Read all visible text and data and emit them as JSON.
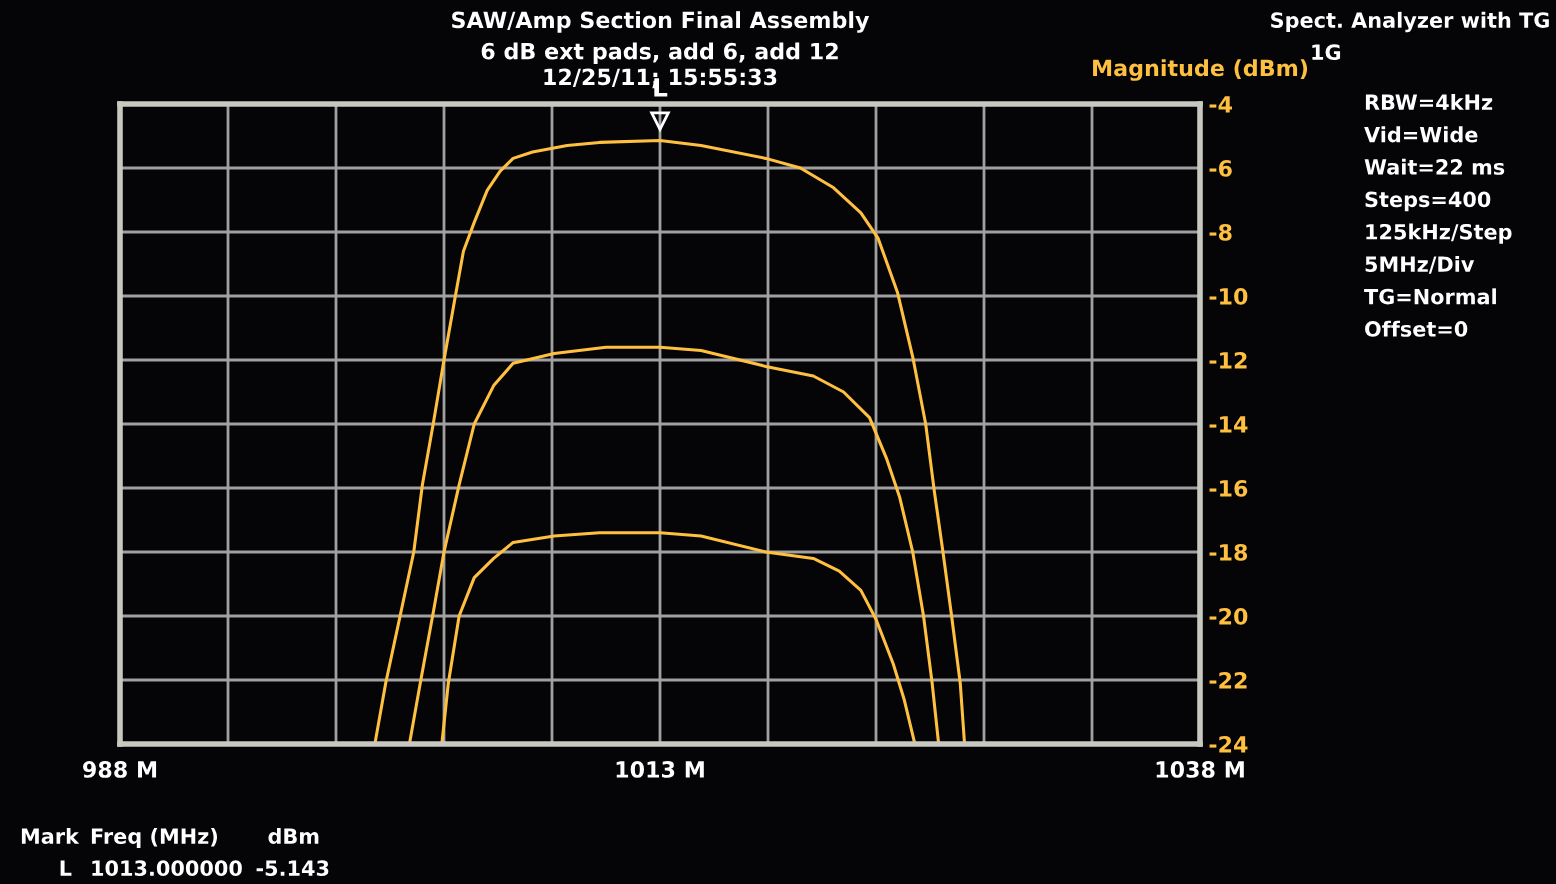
{
  "chart_data": {
    "type": "line",
    "title": "SAW/Amp Section Final Assembly",
    "subtitle": "6 dB ext pads, add 6, add 12\n12/25/11; 15:55:33",
    "ylabel": "Magnitude (dBm)",
    "xlim": [
      988,
      1038
    ],
    "ylim": [
      -24,
      -4
    ],
    "xticks": [
      {
        "value": 988,
        "label": "988 M"
      },
      {
        "value": 993,
        "label": null
      },
      {
        "value": 998,
        "label": null
      },
      {
        "value": 1003,
        "label": null
      },
      {
        "value": 1008,
        "label": null
      },
      {
        "value": 1013,
        "label": "1013 M"
      },
      {
        "value": 1018,
        "label": null
      },
      {
        "value": 1023,
        "label": null
      },
      {
        "value": 1028,
        "label": null
      },
      {
        "value": 1033,
        "label": null
      },
      {
        "value": 1038,
        "label": "1038 M"
      }
    ],
    "yticks": [
      -4,
      -6,
      -8,
      -10,
      -12,
      -14,
      -16,
      -18,
      -20,
      -22,
      -24
    ],
    "grid": true,
    "legend": false,
    "marker": "none",
    "line_style": "solid",
    "series": [
      {
        "color": "#ffc040",
        "x": [
          988,
          999.8,
          1000.3,
          1001.0,
          1001.6,
          1002.0,
          1002.5,
          1003.0,
          1003.5,
          1003.9,
          1004.4,
          1005.0,
          1005.6,
          1006.2,
          1007.1,
          1008.7,
          1010.2,
          1013.0,
          1014.9,
          1017.9,
          1019.5,
          1021.0,
          1022.3,
          1023.1,
          1024.0,
          1024.7,
          1025.3,
          1025.7,
          1026.1,
          1026.5,
          1026.9,
          1027.1,
          1038
        ],
        "values": [
          -24,
          -24,
          -22.1,
          -19.9,
          -18.0,
          -15.9,
          -14.0,
          -12.0,
          -10.1,
          -8.6,
          -7.7,
          -6.7,
          -6.1,
          -5.7,
          -5.5,
          -5.3,
          -5.2,
          -5.14,
          -5.3,
          -5.7,
          -6.0,
          -6.6,
          -7.4,
          -8.2,
          -9.9,
          -11.9,
          -14.0,
          -16.1,
          -18.0,
          -20.0,
          -22.1,
          -24,
          -24
        ]
      },
      {
        "color": "#ffc040",
        "x": [
          988,
          1001.4,
          1001.9,
          1002.5,
          1003.0,
          1003.7,
          1004.4,
          1005.3,
          1006.2,
          1008.1,
          1010.5,
          1013.0,
          1014.9,
          1017.9,
          1020.1,
          1021.5,
          1022.7,
          1023.5,
          1024.1,
          1024.7,
          1025.2,
          1025.6,
          1025.9,
          1038
        ],
        "values": [
          -24,
          -24,
          -22.1,
          -19.9,
          -18.0,
          -15.9,
          -14.0,
          -12.8,
          -12.1,
          -11.8,
          -11.6,
          -11.6,
          -11.7,
          -12.2,
          -12.5,
          -13.0,
          -13.8,
          -15.1,
          -16.3,
          -18.0,
          -20.0,
          -22.1,
          -24,
          -24
        ]
      },
      {
        "color": "#ffc040",
        "x": [
          988,
          1002.9,
          1003.2,
          1003.7,
          1004.4,
          1005.3,
          1006.2,
          1008.1,
          1010.2,
          1013.0,
          1014.9,
          1017.9,
          1020.1,
          1021.3,
          1022.3,
          1023.0,
          1023.8,
          1024.3,
          1024.8,
          1038
        ],
        "values": [
          -24,
          -24,
          -22.1,
          -20.0,
          -18.8,
          -18.2,
          -17.7,
          -17.5,
          -17.4,
          -17.4,
          -17.5,
          -18.0,
          -18.2,
          -18.6,
          -19.2,
          -20.1,
          -21.5,
          -22.6,
          -24,
          -24
        ]
      }
    ],
    "annotations": [
      {
        "text": "L",
        "x": 1013,
        "y": -5.143
      },
      "Spect. Analyzer with TG",
      "1G",
      "RBW=4kHz",
      "Vid=Wide",
      "Wait=22 ms",
      "Steps=400",
      "125kHz/Step",
      "5MHz/Div",
      "TG=Normal",
      "Offset=0",
      "Mark",
      "Freq (MHz)",
      "dBm",
      "L",
      "1013.000000",
      "-5.143"
    ]
  }
}
